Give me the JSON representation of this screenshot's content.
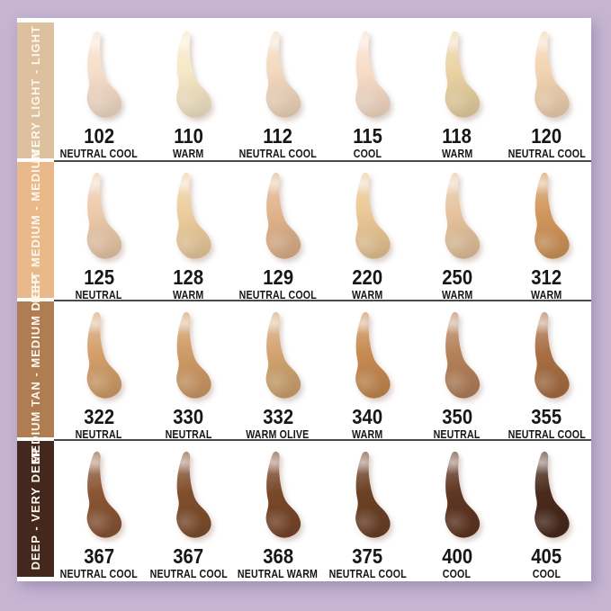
{
  "palette": {
    "background": "#c5b5d3",
    "panel": "#ffffff",
    "divider": "#4a4a4a",
    "label_text": "#161616",
    "sidebar_text": "#fdf7ee"
  },
  "chart_data": {
    "type": "table",
    "description_layout": "4 depth-range rows x 6 shade swatches, each swatch is a liquid makeup swoosh with shade code and undertone label",
    "rows": [
      {
        "range_label": "VERY LIGHT - LIGHT",
        "sidebar_color": "#ddc09d",
        "shades": [
          {
            "code": "102",
            "undertone": "NEUTRAL COOL",
            "color": "#f6ddc9"
          },
          {
            "code": "110",
            "undertone": "WARM",
            "color": "#f7e7c6"
          },
          {
            "code": "112",
            "undertone": "NEUTRAL COOL",
            "color": "#f3d8bf"
          },
          {
            "code": "115",
            "undertone": "COOL",
            "color": "#f8dcc8"
          },
          {
            "code": "118",
            "undertone": "WARM",
            "color": "#ead2a2"
          },
          {
            "code": "120",
            "undertone": "NEUTRAL COOL",
            "color": "#f2d3b1"
          }
        ]
      },
      {
        "range_label": "LIGHT MEDIUM - MEDIUM",
        "sidebar_color": "#e9b98a",
        "shades": [
          {
            "code": "125",
            "undertone": "NEUTRAL",
            "color": "#eccaaa"
          },
          {
            "code": "128",
            "undertone": "WARM",
            "color": "#edcd9d"
          },
          {
            "code": "129",
            "undertone": "NEUTRAL COOL",
            "color": "#e0b38b"
          },
          {
            "code": "220",
            "undertone": "WARM",
            "color": "#ebc795"
          },
          {
            "code": "250",
            "undertone": "WARM",
            "color": "#e6c39d"
          },
          {
            "code": "312",
            "undertone": "WARM",
            "color": "#d2965b"
          }
        ]
      },
      {
        "range_label": "MEDIUM TAN - MEDIUM DEEP",
        "sidebar_color": "#b07c52",
        "shades": [
          {
            "code": "322",
            "undertone": "NEUTRAL",
            "color": "#d49f6a"
          },
          {
            "code": "330",
            "undertone": "NEUTRAL",
            "color": "#cf9b66"
          },
          {
            "code": "332",
            "undertone": "WARM OLIVE",
            "color": "#d2a470"
          },
          {
            "code": "340",
            "undertone": "WARM",
            "color": "#c78b52"
          },
          {
            "code": "350",
            "undertone": "NEUTRAL",
            "color": "#b5815a"
          },
          {
            "code": "355",
            "undertone": "NEUTRAL COOL",
            "color": "#a96f44"
          }
        ]
      },
      {
        "range_label": "DEEP - VERY DEEP",
        "sidebar_color": "#44281e",
        "shades": [
          {
            "code": "367",
            "undertone": "NEUTRAL COOL",
            "color": "#8a5634"
          },
          {
            "code": "367",
            "undertone": "NEUTRAL COOL",
            "color": "#804e2d"
          },
          {
            "code": "368",
            "undertone": "NEUTRAL WARM",
            "color": "#79482a"
          },
          {
            "code": "375",
            "undertone": "NEUTRAL COOL",
            "color": "#6c4126"
          },
          {
            "code": "400",
            "undertone": "COOL",
            "color": "#5f3622"
          },
          {
            "code": "405",
            "undertone": "COOL",
            "color": "#4a2a1c"
          }
        ]
      }
    ]
  }
}
